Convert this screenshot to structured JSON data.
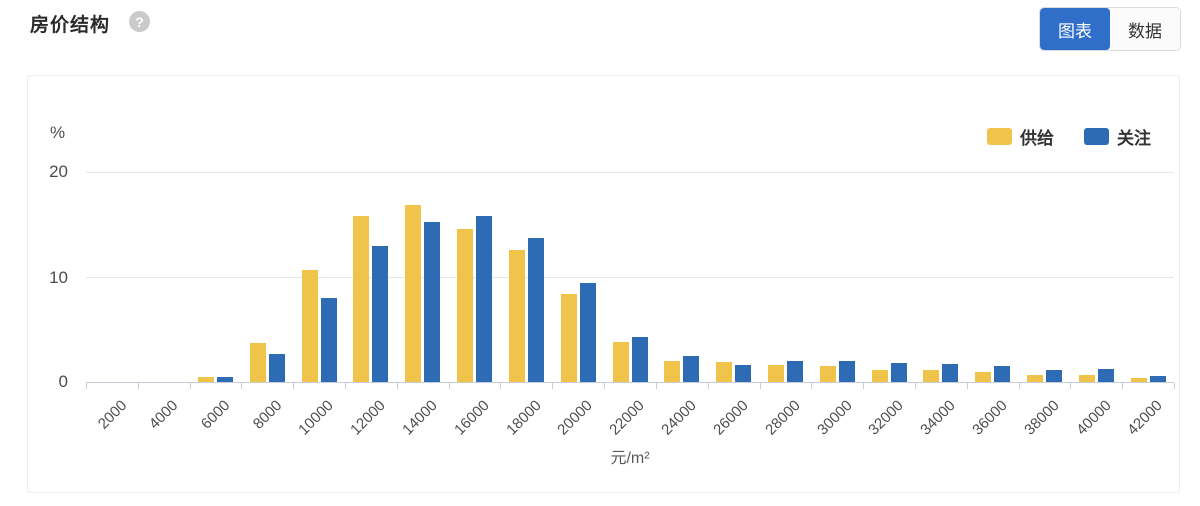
{
  "header": {
    "title": "房价结构",
    "help_icon": "?",
    "view_toggle": [
      {
        "label": "图表",
        "active": true
      },
      {
        "label": "数据",
        "active": false
      }
    ]
  },
  "colors": {
    "accent_blue": "#2F6FC9",
    "bar_yellow": "#F0C34B",
    "bar_blue": "#2D6CB5",
    "axis_line": "#C9CDD8",
    "grid_line": "#E6E6E9"
  },
  "chart_data": {
    "type": "bar",
    "title": "房价结构",
    "y_unit": "%",
    "xlabel": "元/m²",
    "ylim": [
      0,
      20
    ],
    "yticks": [
      0,
      10,
      20
    ],
    "grid": true,
    "legend_position": "top-right",
    "categories": [
      2000,
      4000,
      6000,
      8000,
      10000,
      12000,
      14000,
      16000,
      18000,
      20000,
      22000,
      24000,
      26000,
      28000,
      30000,
      32000,
      34000,
      36000,
      38000,
      40000,
      42000
    ],
    "series": [
      {
        "name": "供给",
        "color": "#F0C34B",
        "values": [
          0,
          0,
          0.5,
          3.7,
          10.7,
          15.8,
          16.9,
          14.6,
          12.6,
          8.4,
          3.8,
          2.0,
          1.9,
          1.6,
          1.5,
          1.1,
          1.1,
          1.0,
          0.7,
          0.7,
          0.4
        ]
      },
      {
        "name": "关注",
        "color": "#2D6CB5",
        "values": [
          0,
          0,
          0.5,
          2.7,
          8.0,
          13.0,
          15.2,
          15.8,
          13.7,
          9.4,
          4.3,
          2.5,
          1.6,
          2.0,
          2.0,
          1.8,
          1.7,
          1.5,
          1.1,
          1.2,
          0.6
        ]
      }
    ]
  }
}
